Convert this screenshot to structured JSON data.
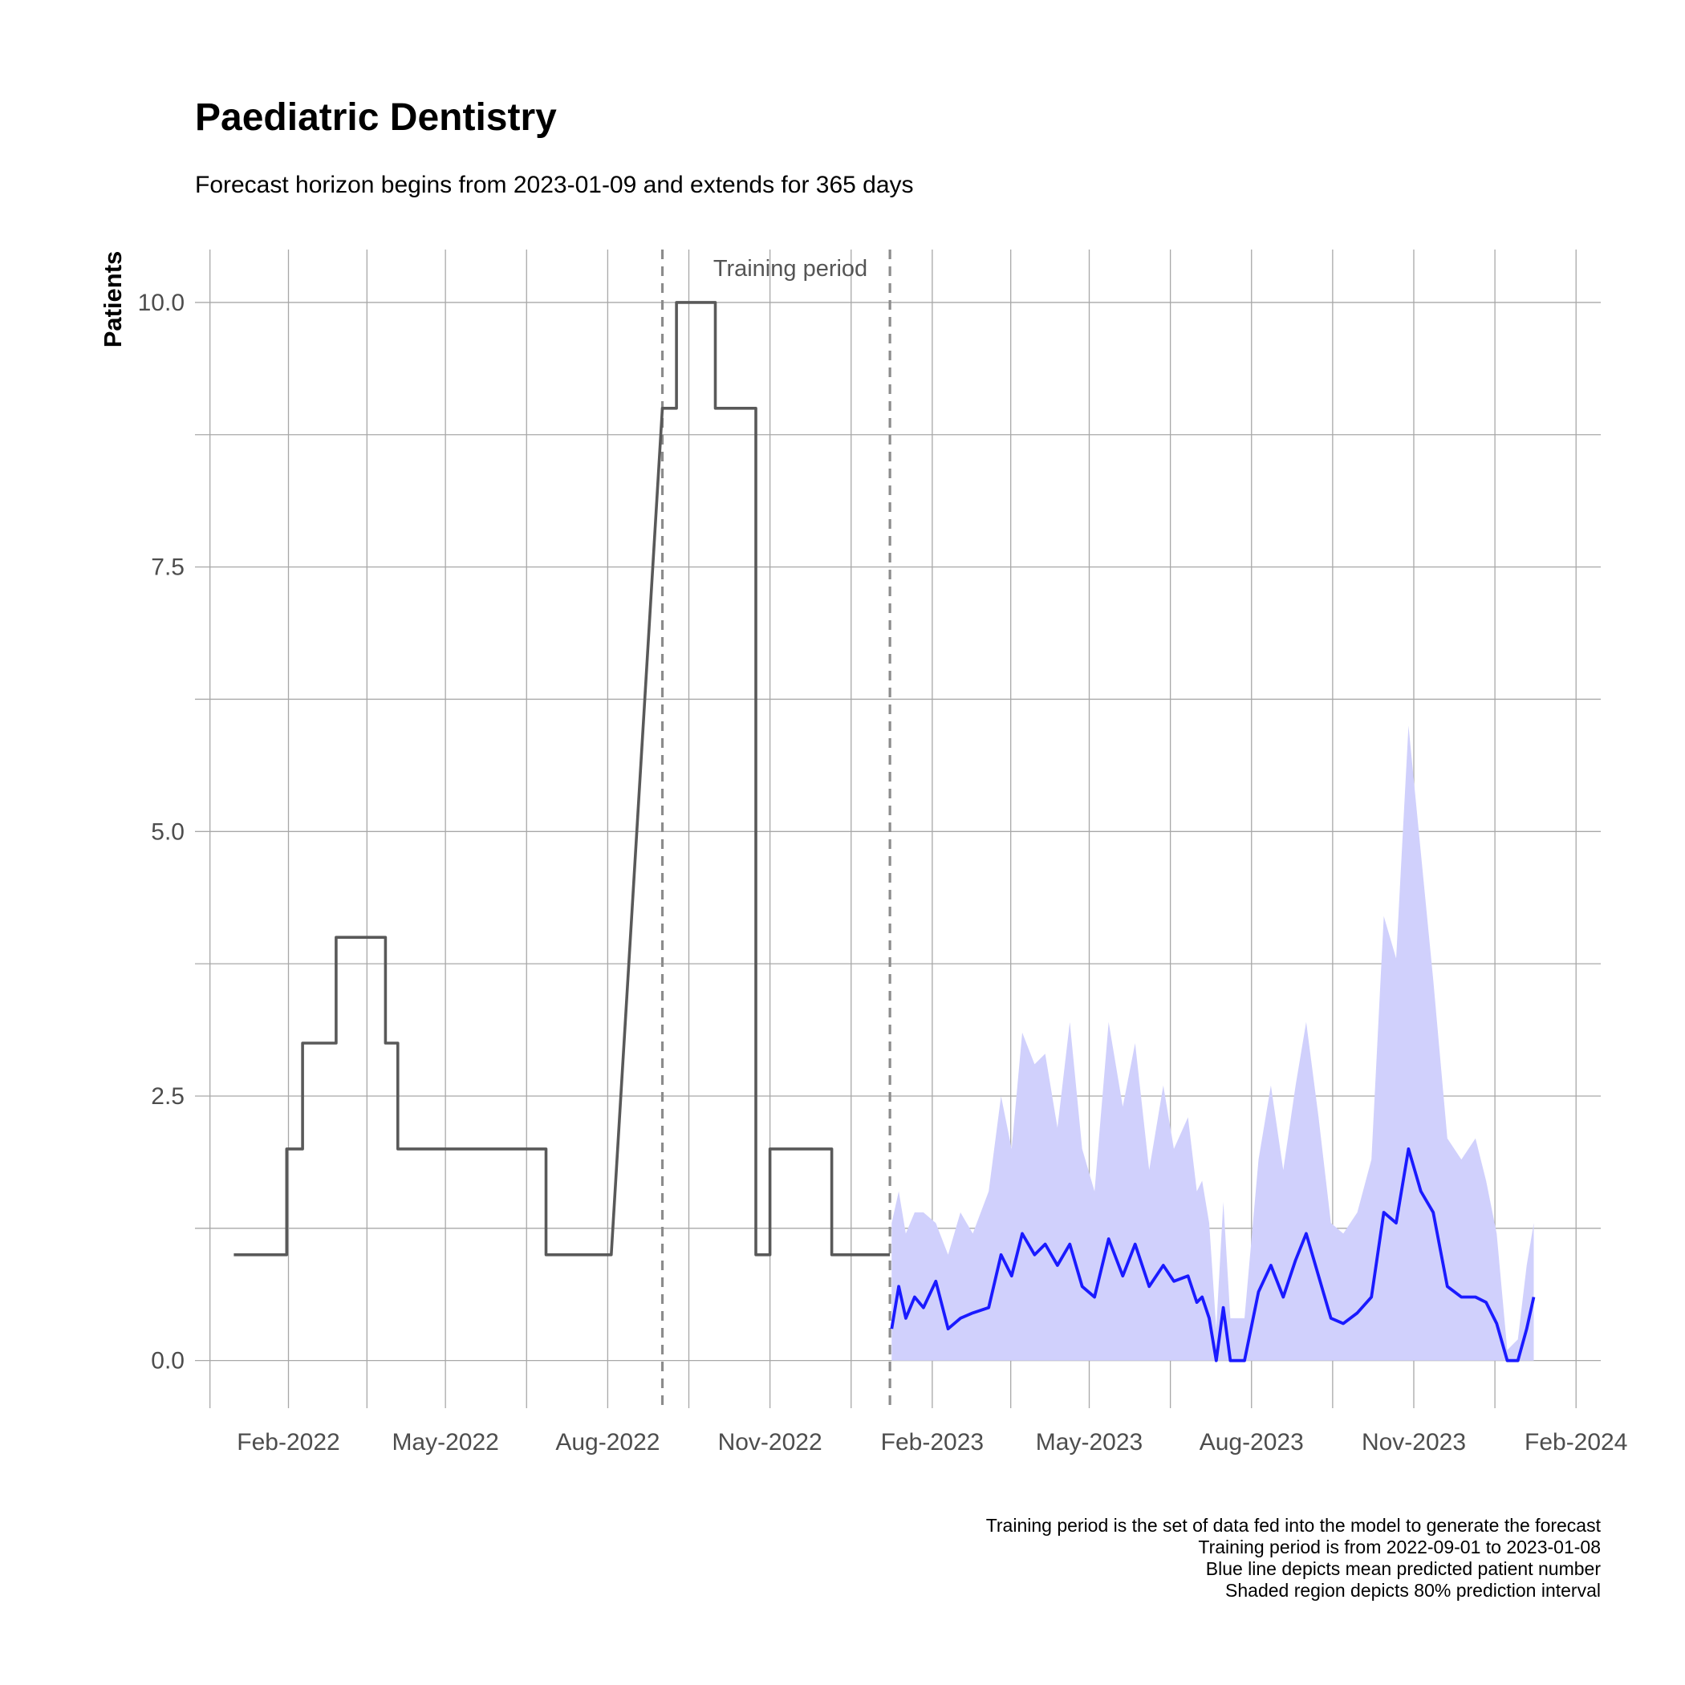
{
  "chart_data": {
    "type": "line",
    "title": "Paediatric Dentistry",
    "subtitle": "Forecast horizon begins from 2023-01-09 and extends for 365 days",
    "xlabel": "",
    "ylabel": "Patients",
    "xlim": [
      "2021-12-10",
      "2024-02-15"
    ],
    "ylim": [
      -0.45,
      10.5
    ],
    "y_ticks": [
      0.0,
      2.5,
      5.0,
      7.5,
      10.0
    ],
    "y_tick_labels": [
      "0.0",
      "2.5",
      "5.0",
      "7.5",
      "10.0"
    ],
    "x_ticks": [
      "2022-02-01",
      "2022-05-01",
      "2022-08-01",
      "2022-11-01",
      "2023-02-01",
      "2023-05-01",
      "2023-08-01",
      "2023-11-01",
      "2024-02-01"
    ],
    "x_tick_labels": [
      "Feb-2022",
      "May-2022",
      "Aug-2022",
      "Nov-2022",
      "Feb-2023",
      "May-2023",
      "Aug-2023",
      "Nov-2023",
      "Feb-2024"
    ],
    "grid": true,
    "colors": {
      "observed": "#595959",
      "forecast": "#1a1aff",
      "interval": "#d0d0fc",
      "vline": "#8c8c8c",
      "annotation": "#555555"
    },
    "training_period": {
      "start": "2022-09-01",
      "end": "2023-01-08",
      "label": "Training period"
    },
    "series": [
      {
        "role": "observed",
        "x": [
          "2022-01-01",
          "2022-01-31",
          "2022-01-31",
          "2022-02-09",
          "2022-02-09",
          "2022-02-28",
          "2022-02-28",
          "2022-03-28",
          "2022-03-28",
          "2022-04-04",
          "2022-04-04",
          "2022-06-27",
          "2022-06-27",
          "2022-08-03",
          "2022-08-03",
          "2022-09-01",
          "2022-09-01",
          "2022-09-09",
          "2022-09-09",
          "2022-10-01",
          "2022-10-01",
          "2022-10-24",
          "2022-10-24",
          "2022-11-01",
          "2022-11-01",
          "2022-12-06",
          "2022-12-06",
          "2023-01-08"
        ],
        "y": [
          1,
          1,
          2,
          2,
          3,
          3,
          4,
          4,
          3,
          3,
          2,
          2,
          1,
          1,
          1,
          9,
          9,
          9,
          10,
          10,
          9,
          9,
          1,
          1,
          2,
          2,
          1,
          1
        ]
      },
      {
        "role": "forecast",
        "name": "Blue line depicts mean predicted patient number",
        "x": [
          "2023-01-09",
          "2023-01-13",
          "2023-01-17",
          "2023-01-22",
          "2023-01-27",
          "2023-02-03",
          "2023-02-10",
          "2023-02-17",
          "2023-02-24",
          "2023-03-05",
          "2023-03-12",
          "2023-03-18",
          "2023-03-24",
          "2023-03-31",
          "2023-04-06",
          "2023-04-13",
          "2023-04-20",
          "2023-04-27",
          "2023-05-04",
          "2023-05-12",
          "2023-05-20",
          "2023-05-27",
          "2023-06-04",
          "2023-06-12",
          "2023-06-18",
          "2023-06-26",
          "2023-07-01",
          "2023-07-04",
          "2023-07-08",
          "2023-07-12",
          "2023-07-16",
          "2023-07-20",
          "2023-07-28",
          "2023-08-05",
          "2023-08-12",
          "2023-08-19",
          "2023-08-26",
          "2023-09-01",
          "2023-09-08",
          "2023-09-15",
          "2023-09-22",
          "2023-09-30",
          "2023-10-08",
          "2023-10-15",
          "2023-10-22",
          "2023-10-29",
          "2023-11-05",
          "2023-11-12",
          "2023-11-20",
          "2023-11-28",
          "2023-12-06",
          "2023-12-12",
          "2023-12-18",
          "2023-12-24",
          "2023-12-30",
          "2024-01-04",
          "2024-01-08"
        ],
        "y": [
          0.3,
          0.7,
          0.4,
          0.6,
          0.5,
          0.75,
          0.3,
          0.4,
          0.45,
          0.5,
          1.0,
          0.8,
          1.2,
          1.0,
          1.1,
          0.9,
          1.1,
          0.7,
          0.6,
          1.15,
          0.8,
          1.1,
          0.7,
          0.9,
          0.75,
          0.8,
          0.55,
          0.6,
          0.4,
          0.0,
          0.5,
          0.0,
          0.0,
          0.65,
          0.9,
          0.6,
          0.95,
          1.2,
          0.8,
          0.4,
          0.35,
          0.45,
          0.6,
          1.4,
          1.3,
          2.0,
          1.6,
          1.4,
          0.7,
          0.6,
          0.6,
          0.55,
          0.35,
          0.0,
          0.0,
          0.3,
          0.6
        ]
      },
      {
        "role": "interval",
        "name": "Shaded region depicts 80% prediction interval",
        "x": [
          "2023-01-09",
          "2023-01-13",
          "2023-01-17",
          "2023-01-22",
          "2023-01-27",
          "2023-02-03",
          "2023-02-10",
          "2023-02-17",
          "2023-02-24",
          "2023-03-05",
          "2023-03-12",
          "2023-03-18",
          "2023-03-24",
          "2023-03-31",
          "2023-04-06",
          "2023-04-13",
          "2023-04-20",
          "2023-04-27",
          "2023-05-04",
          "2023-05-12",
          "2023-05-20",
          "2023-05-27",
          "2023-06-04",
          "2023-06-12",
          "2023-06-18",
          "2023-06-26",
          "2023-07-01",
          "2023-07-04",
          "2023-07-08",
          "2023-07-12",
          "2023-07-16",
          "2023-07-20",
          "2023-07-28",
          "2023-08-05",
          "2023-08-12",
          "2023-08-19",
          "2023-08-26",
          "2023-09-01",
          "2023-09-08",
          "2023-09-15",
          "2023-09-22",
          "2023-09-30",
          "2023-10-08",
          "2023-10-15",
          "2023-10-22",
          "2023-10-29",
          "2023-11-05",
          "2023-11-12",
          "2023-11-20",
          "2023-11-28",
          "2023-12-06",
          "2023-12-12",
          "2023-12-18",
          "2023-12-24",
          "2023-12-30",
          "2024-01-04",
          "2024-01-08"
        ],
        "upper": [
          1.3,
          1.6,
          1.2,
          1.4,
          1.4,
          1.3,
          1.0,
          1.4,
          1.2,
          1.6,
          2.5,
          2.0,
          3.1,
          2.8,
          2.9,
          2.2,
          3.2,
          2.0,
          1.6,
          3.2,
          2.4,
          3.0,
          1.8,
          2.6,
          2.0,
          2.3,
          1.6,
          1.7,
          1.3,
          0.3,
          1.5,
          0.4,
          0.4,
          1.9,
          2.6,
          1.8,
          2.6,
          3.2,
          2.3,
          1.3,
          1.2,
          1.4,
          1.9,
          4.2,
          3.8,
          6.0,
          4.8,
          3.6,
          2.1,
          1.9,
          2.1,
          1.7,
          1.2,
          0.1,
          0.2,
          0.9,
          1.3
        ],
        "lower": [
          0,
          0,
          0,
          0,
          0,
          0,
          0,
          0,
          0,
          0,
          0,
          0,
          0,
          0,
          0,
          0,
          0,
          0,
          0,
          0,
          0,
          0,
          0,
          0,
          0,
          0,
          0,
          0,
          0,
          0,
          0,
          0,
          0,
          0,
          0,
          0,
          0,
          0,
          0,
          0,
          0,
          0,
          0,
          0,
          0,
          0,
          0,
          0,
          0,
          0,
          0,
          0,
          0,
          0,
          0,
          0,
          0
        ]
      }
    ],
    "caption": [
      "Training period is the set of data fed into the model to generate the forecast",
      "Training period is from 2022-09-01 to 2023-01-08",
      "Blue line depicts mean predicted patient number",
      "Shaded region depicts 80% prediction interval"
    ]
  }
}
